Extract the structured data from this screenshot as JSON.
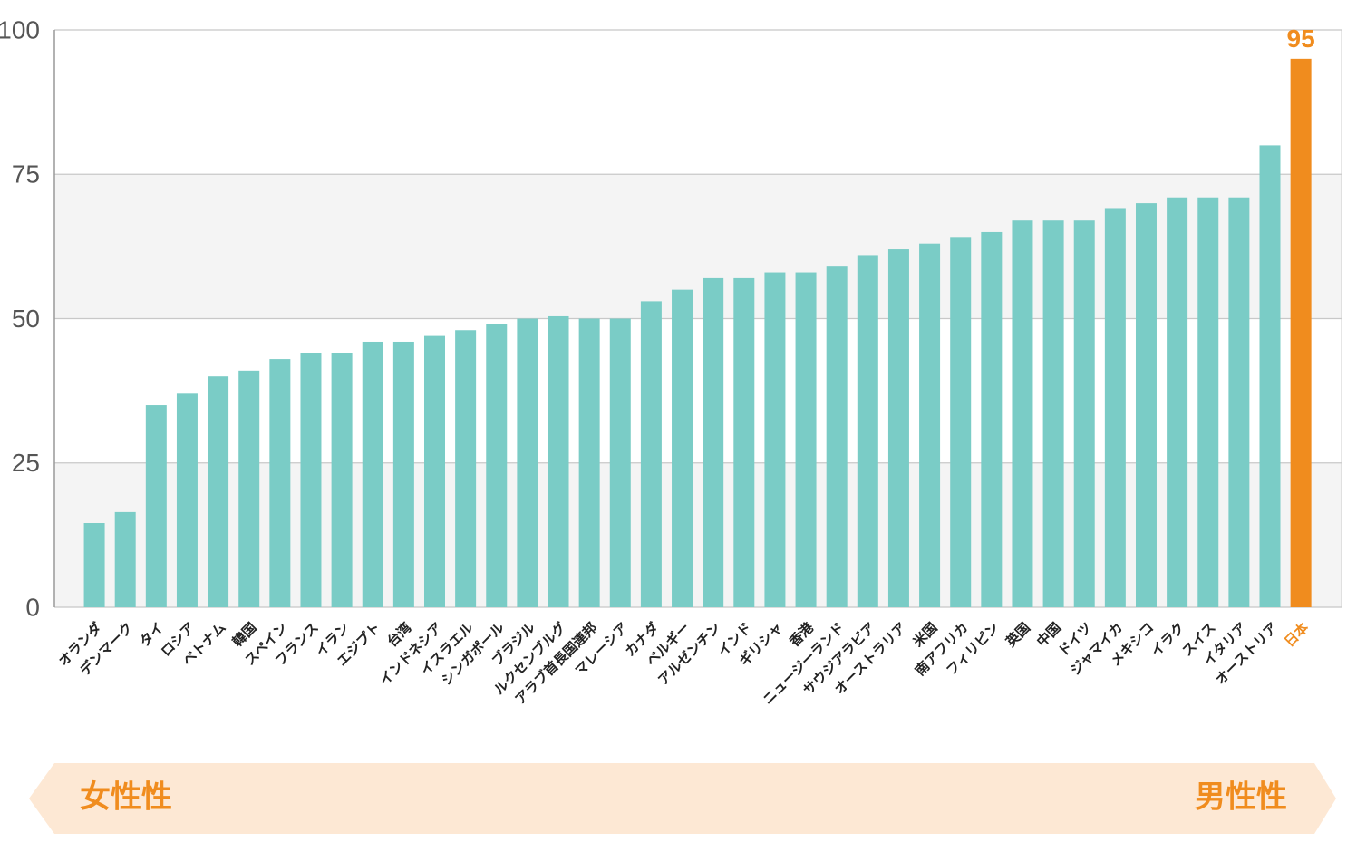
{
  "chart_data": {
    "type": "bar",
    "categories": [
      "オランダ",
      "デンマーク",
      "タイ",
      "ロシア",
      "ベトナム",
      "韓国",
      "スペイン",
      "フランス",
      "イラン",
      "エジプト",
      "台湾",
      "インドネシア",
      "イスラエル",
      "シンガポール",
      "ブラジル",
      "ルクセンブルグ",
      "アラブ首長国連邦",
      "マレーシア",
      "カナダ",
      "ベルギー",
      "アルゼンチン",
      "インド",
      "ギリシャ",
      "香港",
      "ニュージーランド",
      "サウジアラビア",
      "オーストラリア",
      "米国",
      "南アフリカ",
      "フィリピン",
      "英国",
      "中国",
      "ドイツ",
      "ジャマイカ",
      "メキシコ",
      "イラク",
      "スイス",
      "イタリア",
      "オーストリア",
      "日本"
    ],
    "values": [
      14.6,
      16.5,
      35,
      37,
      40,
      41,
      43,
      44,
      44,
      46,
      46,
      47,
      48,
      49,
      50,
      50.4,
      50,
      50,
      53,
      55,
      57,
      57,
      58,
      58,
      59,
      61,
      62,
      63,
      64,
      65,
      67,
      67,
      67,
      69,
      70,
      71,
      71,
      71,
      80,
      95
    ],
    "value_labels": [
      null,
      null,
      null,
      null,
      null,
      null,
      null,
      null,
      null,
      null,
      null,
      null,
      null,
      null,
      null,
      null,
      null,
      null,
      null,
      null,
      null,
      null,
      null,
      null,
      null,
      null,
      null,
      null,
      null,
      null,
      null,
      null,
      null,
      null,
      null,
      null,
      null,
      null,
      null,
      "95"
    ],
    "color": "#7accc6",
    "colors": [
      "#7accc6",
      "#7accc6",
      "#7accc6",
      "#7accc6",
      "#7accc6",
      "#7accc6",
      "#7accc6",
      "#7accc6",
      "#7accc6",
      "#7accc6",
      "#7accc6",
      "#7accc6",
      "#7accc6",
      "#7accc6",
      "#7accc6",
      "#7accc6",
      "#7accc6",
      "#7accc6",
      "#7accc6",
      "#7accc6",
      "#7accc6",
      "#7accc6",
      "#7accc6",
      "#7accc6",
      "#7accc6",
      "#7accc6",
      "#7accc6",
      "#7accc6",
      "#7accc6",
      "#7accc6",
      "#7accc6",
      "#7accc6",
      "#7accc6",
      "#7accc6",
      "#7accc6",
      "#7accc6",
      "#7accc6",
      "#7accc6",
      "#7accc6",
      "#f08c1e"
    ],
    "ylim": [
      0,
      100
    ],
    "yticks": [
      0,
      25,
      50,
      75,
      100
    ],
    "grid": true
  },
  "scale_band": {
    "left": "女性性",
    "right": "男性性"
  }
}
